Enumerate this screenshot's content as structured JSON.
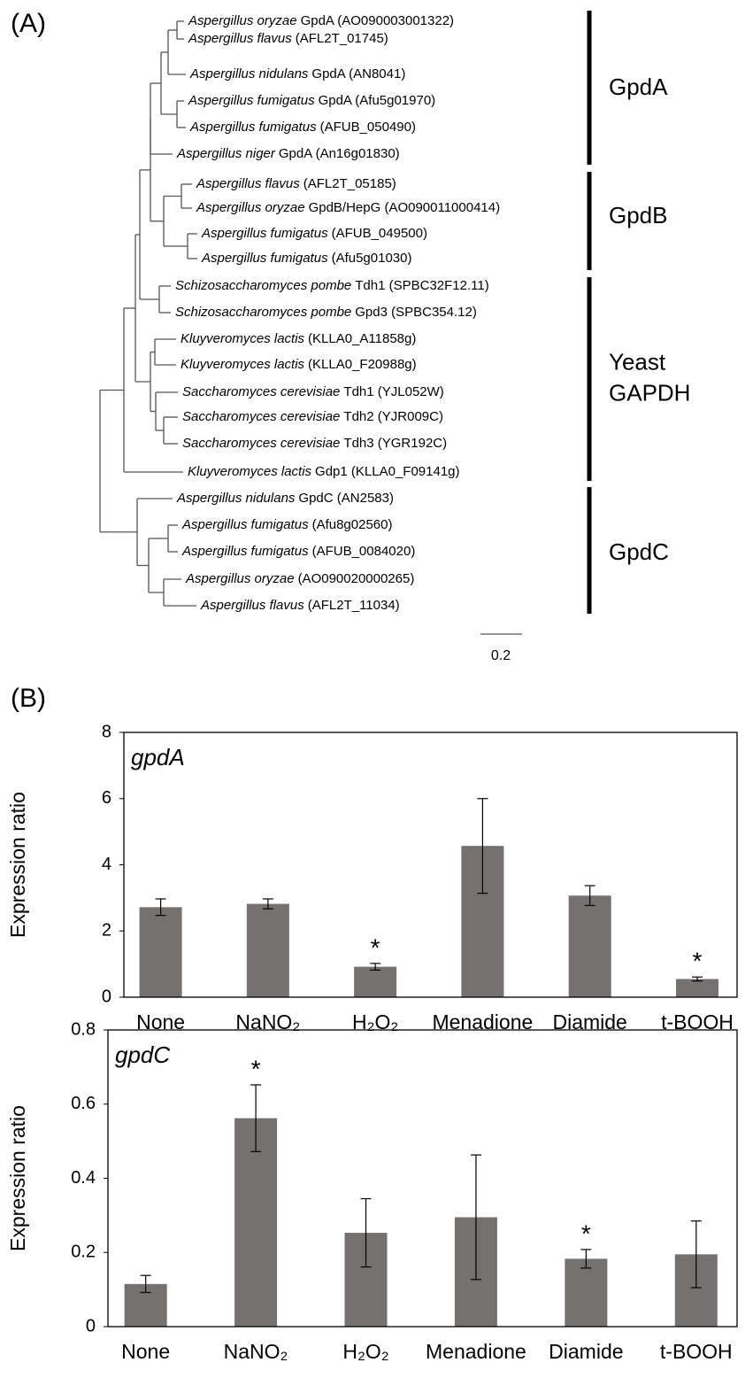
{
  "panel_a": {
    "label": "(A)",
    "leaves": [
      {
        "species": "Aspergillus oryzae",
        "name": "GpdA (AO090003001322)"
      },
      {
        "species": "Aspergillus flavus",
        "name": "(AFL2T_01745)"
      },
      {
        "species": "Aspergillus nidulans",
        "name": "GpdA (AN8041)"
      },
      {
        "species": "Aspergillus fumigatus",
        "name": "GpdA (Afu5g01970)"
      },
      {
        "species": "Aspergillus fumigatus",
        "name": "(AFUB_050490)"
      },
      {
        "species": "Aspergillus niger",
        "name": "GpdA (An16g01830)"
      },
      {
        "species": "Aspergillus flavus",
        "name": "(AFL2T_05185)"
      },
      {
        "species": "Aspergillus oryzae",
        "name": "GpdB/HepG (AO090011000414)"
      },
      {
        "species": "Aspergillus fumigatus",
        "name": "(AFUB_049500)"
      },
      {
        "species": "Aspergillus fumigatus",
        "name": "(Afu5g01030)"
      },
      {
        "species": "Schizosaccharomyces pombe",
        "name": "Tdh1 (SPBC32F12.11)"
      },
      {
        "species": "Schizosaccharomyces pombe",
        "name": "Gpd3 (SPBC354.12)"
      },
      {
        "species": "Kluyveromyces lactis",
        "name": "(KLLA0_A11858g)"
      },
      {
        "species": "Kluyveromyces lactis",
        "name": "(KLLA0_F20988g)"
      },
      {
        "species": "Saccharomyces cerevisiae",
        "name": "Tdh1 (YJL052W)"
      },
      {
        "species": "Saccharomyces cerevisiae",
        "name": "Tdh2 (YJR009C)"
      },
      {
        "species": "Saccharomyces cerevisiae",
        "name": "Tdh3 (YGR192C)"
      },
      {
        "species": "Kluyveromyces lactis",
        "name": "Gdp1 (KLLA0_F09141g)"
      },
      {
        "species": "Aspergillus nidulans",
        "name": "GpdC (AN2583)"
      },
      {
        "species": "Aspergillus fumigatus",
        "name": "(Afu8g02560)"
      },
      {
        "species": "Aspergillus fumigatus",
        "name": "(AFUB_0084020)"
      },
      {
        "species": "Aspergillus oryzae",
        "name": "(AO090020000265)"
      },
      {
        "species": "Aspergillus flavus",
        "name": "(AFL2T_11034)"
      }
    ],
    "clades": [
      {
        "lines": [
          "GpdA"
        ]
      },
      {
        "lines": [
          "GpdB"
        ]
      },
      {
        "lines": [
          "Yeast",
          "GAPDH"
        ]
      },
      {
        "lines": [
          "GpdC"
        ]
      }
    ],
    "scale_bar": "0.2"
  },
  "panel_b": {
    "label": "(B)"
  },
  "chart_data": [
    {
      "type": "bar",
      "title": "gpdA",
      "y_label": "Expression ratio",
      "categories": [
        "None",
        "NaNO₂",
        "H₂O₂",
        "Menadione",
        "Diamide",
        "t-BOOH"
      ],
      "values": [
        2.72,
        2.82,
        0.92,
        4.57,
        3.07,
        0.55
      ],
      "errors": [
        0.25,
        0.15,
        0.1,
        1.43,
        0.3,
        0.06
      ],
      "markers": [
        null,
        null,
        "*",
        null,
        null,
        "*"
      ],
      "color": "#767171",
      "ylim": [
        0,
        8
      ],
      "yticks": [
        0,
        2,
        4,
        6,
        8
      ]
    },
    {
      "type": "bar",
      "title": "gpdC",
      "y_label": "Expression ratio",
      "categories": [
        "None",
        "NaNO₂",
        "H₂O₂",
        "Menadione",
        "Diamide",
        "t-BOOH"
      ],
      "values": [
        0.115,
        0.562,
        0.253,
        0.295,
        0.183,
        0.195
      ],
      "errors": [
        0.023,
        0.09,
        0.092,
        0.168,
        0.025,
        0.09
      ],
      "markers": [
        null,
        "*",
        null,
        null,
        "*",
        null
      ],
      "color": "#767171",
      "ylim": [
        0,
        0.8
      ],
      "yticks": [
        0,
        0.2,
        0.4,
        0.6,
        0.8
      ]
    }
  ]
}
